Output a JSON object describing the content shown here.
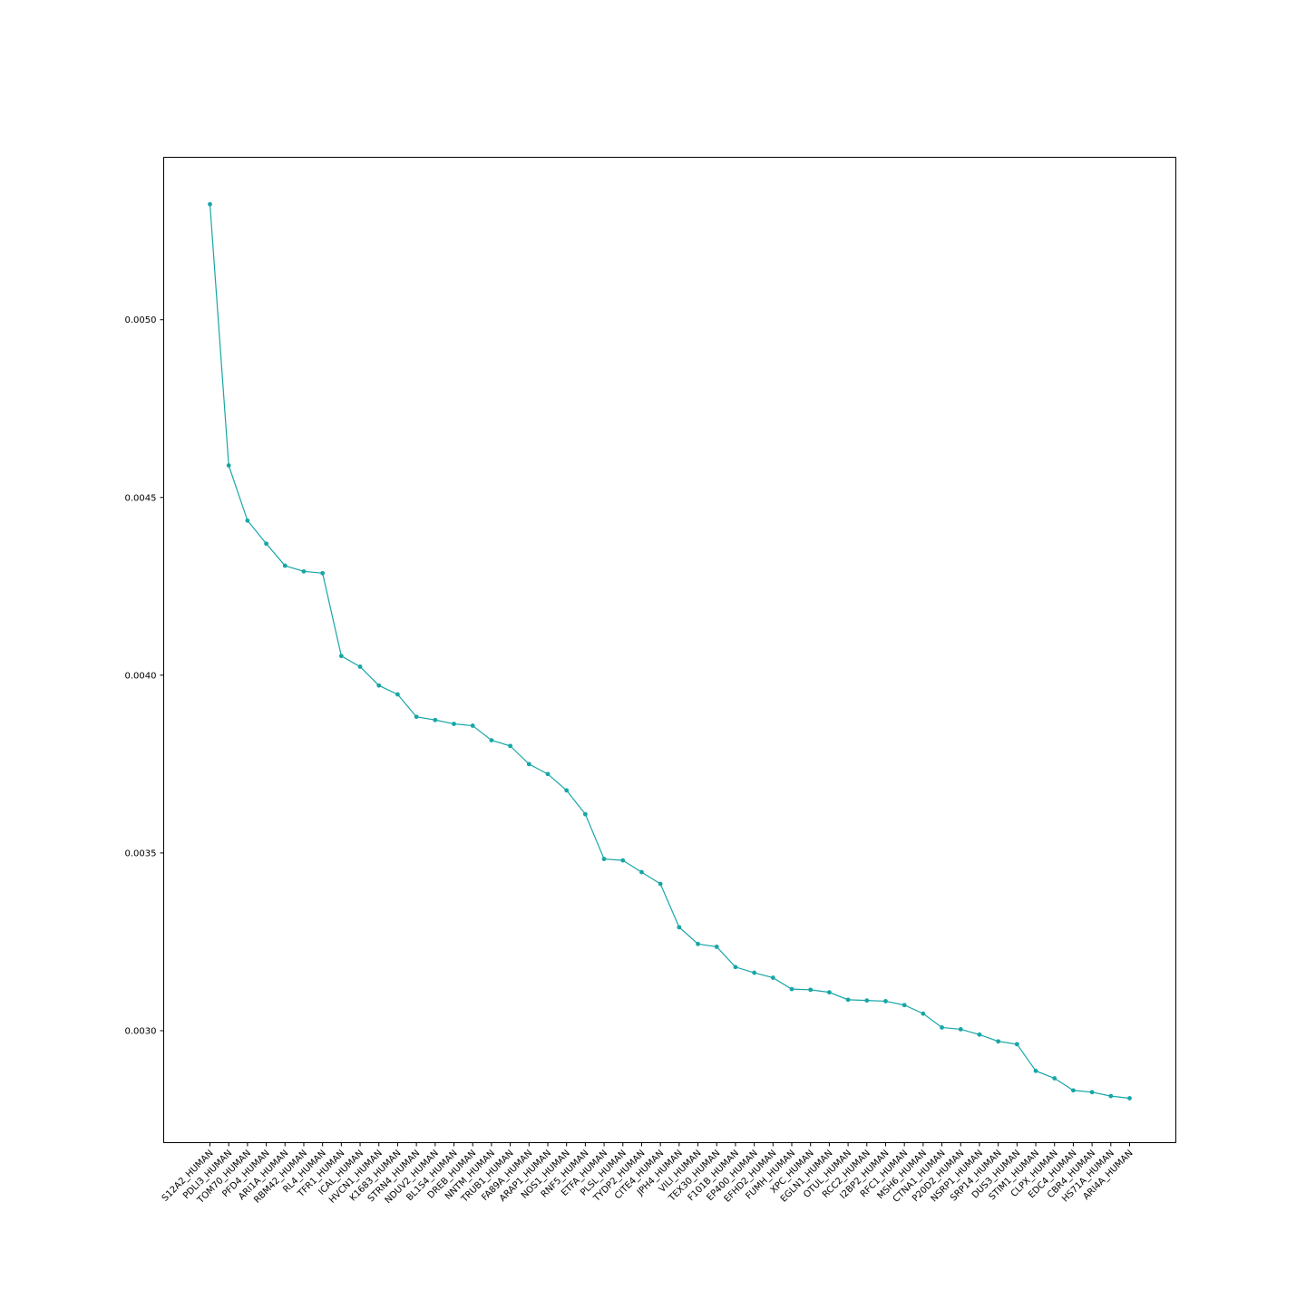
{
  "chart_data": {
    "type": "line",
    "title": "",
    "xlabel": "",
    "ylabel": "",
    "ylim": [
      0.002685,
      0.005457
    ],
    "yticks": [
      0.003,
      0.0035,
      0.004,
      0.0045,
      0.005
    ],
    "ytick_labels": [
      "0.0030",
      "0.0035",
      "0.0040",
      "0.0045",
      "0.0050"
    ],
    "grid": false,
    "legend": "none",
    "line_color": "#17a6a6",
    "categories": [
      "S12A2_HUMAN",
      "PDLI3_HUMAN",
      "TOM70_HUMAN",
      "PFD4_HUMAN",
      "ARI1A_HUMAN",
      "RBM42_HUMAN",
      "RL4_HUMAN",
      "TFR1_HUMAN",
      "ICAL_HUMAN",
      "HVCN1_HUMAN",
      "K1683_HUMAN",
      "STRN4_HUMAN",
      "NDUV2_HUMAN",
      "BL1S4_HUMAN",
      "DREB_HUMAN",
      "NNTM_HUMAN",
      "TRUB1_HUMAN",
      "FA89A_HUMAN",
      "ARAP1_HUMAN",
      "NOS1_HUMAN",
      "RNF5_HUMAN",
      "ETFA_HUMAN",
      "PLSL_HUMAN",
      "TYDP2_HUMAN",
      "CITE4_HUMAN",
      "JPH4_HUMAN",
      "VILI_HUMAN",
      "TEX30_HUMAN",
      "F101B_HUMAN",
      "EP400_HUMAN",
      "EFHD2_HUMAN",
      "FUMH_HUMAN",
      "XPC_HUMAN",
      "EGLN1_HUMAN",
      "OTUL_HUMAN",
      "RCC2_HUMAN",
      "I2BP2_HUMAN",
      "RFC1_HUMAN",
      "MSH6_HUMAN",
      "CTNA1_HUMAN",
      "P20D2_HUMAN",
      "NSRP1_HUMAN",
      "SRP14_HUMAN",
      "DUS3_HUMAN",
      "STIM1_HUMAN",
      "CLPX_HUMAN",
      "EDC4_HUMAN",
      "CBR4_HUMAN",
      "HS71A_HUMAN",
      "ARI4A_HUMAN"
    ],
    "values": [
      0.005325,
      0.00459,
      0.004435,
      0.00437,
      0.004308,
      0.004292,
      0.004287,
      0.004054,
      0.004024,
      0.003971,
      0.003946,
      0.003883,
      0.003874,
      0.003863,
      0.003858,
      0.003817,
      0.003801,
      0.00375,
      0.003722,
      0.003676,
      0.003609,
      0.003483,
      0.003479,
      0.003446,
      0.003413,
      0.003291,
      0.003244,
      0.003236,
      0.003179,
      0.003163,
      0.003149,
      0.003117,
      0.003115,
      0.003108,
      0.003087,
      0.003085,
      0.003083,
      0.003072,
      0.003048,
      0.003009,
      0.003004,
      0.002989,
      0.00297,
      0.002962,
      0.002887,
      0.002866,
      0.002832,
      0.002827,
      0.002816,
      0.00281
    ]
  }
}
